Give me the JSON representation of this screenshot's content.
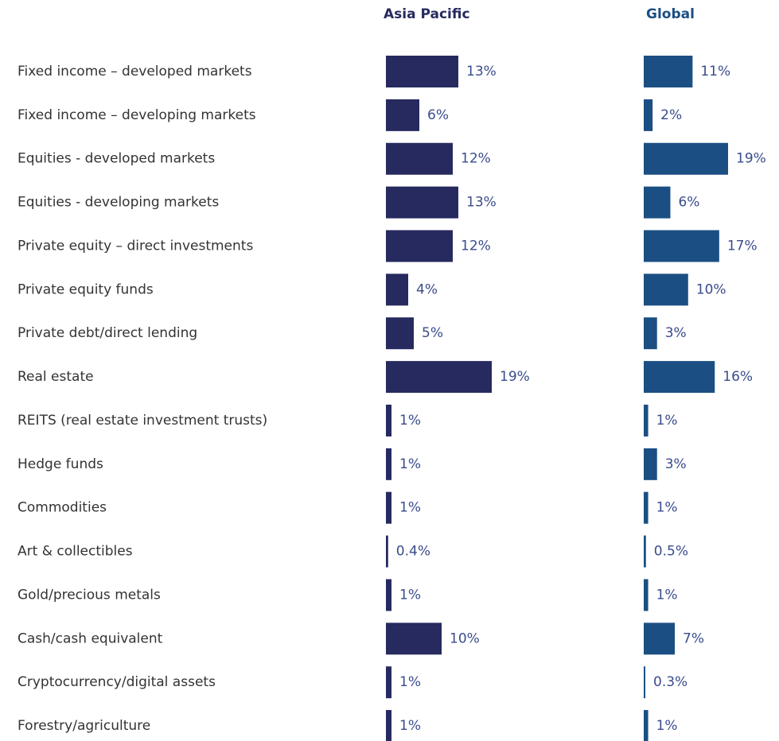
{
  "chart_data": {
    "type": "bar",
    "orientation": "horizontal",
    "categories": [
      "Fixed income – developed markets",
      "Fixed income – developing markets",
      "Equities - developed markets",
      "Equities - developing markets",
      "Private equity – direct investments",
      "Private equity funds",
      "Private debt/direct lending",
      "Real estate",
      "REITS (real estate investment trusts)",
      "Hedge funds",
      "Commodities",
      "Art & collectibles",
      "Gold/precious metals",
      "Cash/cash equivalent",
      "Cryptocurrency/digital assets",
      "Forestry/agriculture"
    ],
    "series": [
      {
        "name": "Asia Pacific",
        "color": "#272a5f",
        "values": [
          13,
          6,
          12,
          13,
          12,
          4,
          5,
          19,
          1,
          1,
          1,
          0.4,
          1,
          10,
          1,
          1
        ],
        "value_labels": [
          "13%",
          "6%",
          "12%",
          "13%",
          "12%",
          "4%",
          "5%",
          "19%",
          "1%",
          "1%",
          "1%",
          "0.4%",
          "1%",
          "10%",
          "1%",
          "1%"
        ]
      },
      {
        "name": "Global",
        "color": "#1b4f83",
        "values": [
          11,
          2,
          19,
          6,
          17,
          10,
          3,
          16,
          1,
          3,
          1,
          0.5,
          1,
          7,
          0.3,
          1
        ],
        "value_labels": [
          "11%",
          "2%",
          "19%",
          "6%",
          "17%",
          "10%",
          "3%",
          "16%",
          "1%",
          "3%",
          "1%",
          "0.5%",
          "1%",
          "7%",
          "0.3%",
          "1%"
        ]
      }
    ]
  }
}
